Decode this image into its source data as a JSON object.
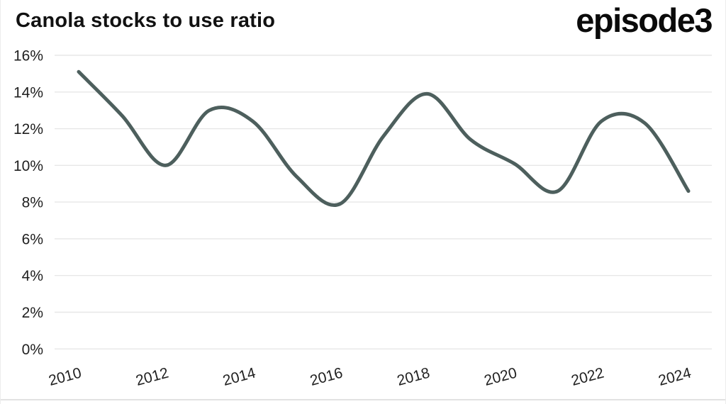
{
  "header": {
    "title": "Canola stocks to use ratio",
    "logo_text": "episode3"
  },
  "chart_data": {
    "type": "line",
    "title": "Canola stocks to use ratio",
    "x": [
      2010,
      2011,
      2012,
      2013,
      2014,
      2015,
      2016,
      2017,
      2018,
      2019,
      2020,
      2021,
      2022,
      2023,
      2024
    ],
    "series": [
      {
        "name": "Canola stocks to use ratio",
        "values": [
          15.1,
          12.7,
          10.0,
          13.0,
          12.4,
          9.4,
          7.9,
          11.6,
          13.9,
          11.4,
          10.1,
          8.6,
          12.4,
          12.3,
          8.6
        ]
      }
    ],
    "unit": "%",
    "xlim": [
      2010,
      2024
    ],
    "ylim": [
      0,
      16
    ],
    "y_tick_step": 2,
    "y_tick_labels": [
      "0%",
      "2%",
      "4%",
      "6%",
      "8%",
      "10%",
      "12%",
      "14%",
      "16%"
    ],
    "x_tick_labels": [
      "2010",
      "2012",
      "2014",
      "2016",
      "2018",
      "2020",
      "2022",
      "2024"
    ],
    "x_tick_label_rotation_deg": -15,
    "grid": "horizontal",
    "legend": "none",
    "colors": {
      "line": "#4d5f5d",
      "grid": "#e7e7e7",
      "tick_label": "#1f1f1f",
      "title": "#111111",
      "background": "#ffffff"
    }
  }
}
